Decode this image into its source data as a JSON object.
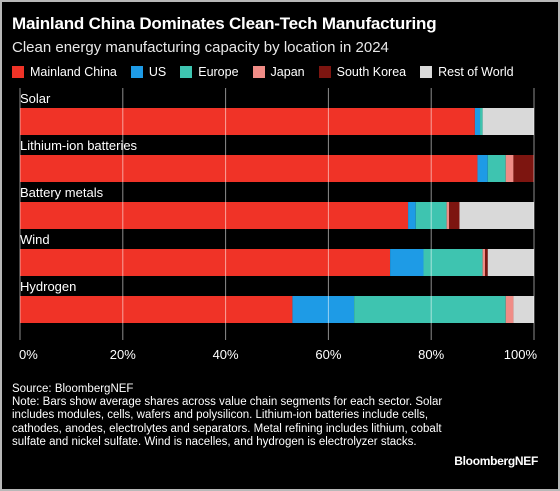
{
  "title": "Mainland China Dominates Clean-Tech Manufacturing",
  "subtitle": "Clean energy manufacturing capacity by location in 2024",
  "legend": [
    {
      "label": "Mainland China",
      "color": "#f03327"
    },
    {
      "label": "US",
      "color": "#1e9be6"
    },
    {
      "label": "Europe",
      "color": "#3ec4b0"
    },
    {
      "label": "Japan",
      "color": "#f08c86"
    },
    {
      "label": "South Korea",
      "color": "#7d1510"
    },
    {
      "label": "Rest of World",
      "color": "#d9d9d9"
    }
  ],
  "source": "Source: BloombergNEF",
  "note": "Note: Bars show average shares across value chain segments for each sector. Solar includes modules, cells, wafers and polysilicon. Lithium-ion batteries include cells, cathodes, anodes, electrolytes and separators. Metal refining includes lithium, cobalt sulfate and nickel sulfate. Wind is nacelles, and hydrogen is electrolyzer stacks.",
  "brand": "BloombergNEF",
  "chart_data": {
    "type": "bar",
    "orientation": "horizontal",
    "stacked": true,
    "categories": [
      "Solar",
      "Lithium-ion batteries",
      "Battery metals",
      "Wind",
      "Hydrogen"
    ],
    "series": [
      {
        "name": "Mainland China",
        "color": "#f03327",
        "values": [
          88.5,
          89.0,
          75.5,
          72.0,
          53.0
        ]
      },
      {
        "name": "US",
        "color": "#1e9be6",
        "values": [
          1.0,
          2.0,
          1.5,
          6.5,
          12.0
        ]
      },
      {
        "name": "Europe",
        "color": "#3ec4b0",
        "values": [
          0.5,
          3.5,
          6.0,
          11.5,
          29.5
        ]
      },
      {
        "name": "Japan",
        "color": "#f08c86",
        "values": [
          0.0,
          1.5,
          0.5,
          0.5,
          1.5
        ]
      },
      {
        "name": "South Korea",
        "color": "#7d1510",
        "values": [
          0.0,
          4.0,
          2.0,
          0.5,
          0.0
        ]
      },
      {
        "name": "Rest of World",
        "color": "#d9d9d9",
        "values": [
          10.0,
          0.0,
          14.5,
          9.0,
          4.0
        ]
      }
    ],
    "xlim": [
      0,
      100
    ],
    "x_ticks": [
      "0%",
      "20%",
      "40%",
      "60%",
      "80%",
      "100%"
    ],
    "x_tick_values": [
      0,
      20,
      40,
      60,
      80,
      100
    ],
    "grid": true,
    "legend_position": "top"
  }
}
